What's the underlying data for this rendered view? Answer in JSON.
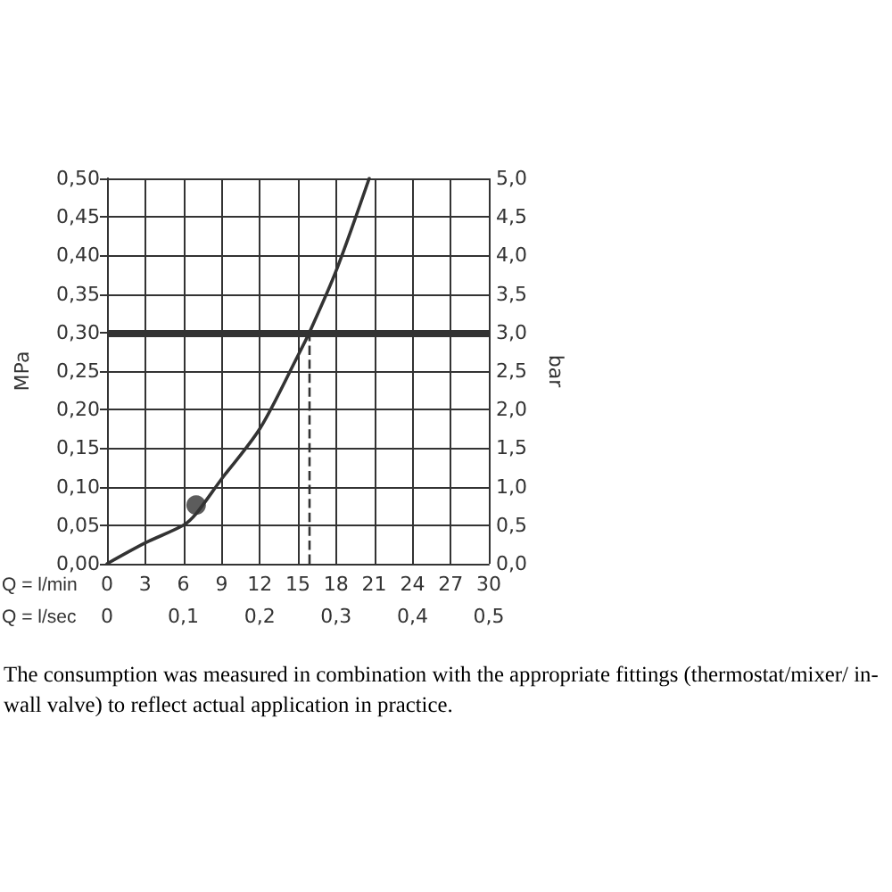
{
  "chart_data": {
    "type": "line",
    "xlabel": "Q = l/min",
    "x2label": "Q = l/sec",
    "ylabel": "MPa",
    "y2label": "bar",
    "x": [
      0,
      3,
      6,
      7,
      9,
      12,
      15,
      15.9,
      18,
      20.6
    ],
    "series": [
      {
        "color": "#333333",
        "values": [
          0,
          0.027,
          0.05,
          0.065,
          0.11,
          0.175,
          0.27,
          0.3,
          0.38,
          0.5
        ],
        "marker": "none",
        "line_style": "solid"
      },
      {
        "type": "scatter",
        "color": "#333333",
        "values": [
          null,
          null,
          null,
          0.076,
          null,
          null,
          null,
          null,
          null,
          null
        ],
        "marker": "circle"
      }
    ],
    "xlim": [
      0,
      30
    ],
    "xticks": [
      0,
      3,
      6,
      9,
      12,
      15,
      18,
      21,
      24,
      27,
      30
    ],
    "x2lim": [
      0,
      0.5
    ],
    "x2ticks": [
      0,
      {
        "value": 0.1,
        "label": "0,1"
      },
      {
        "value": 0.2,
        "label": "0,2"
      },
      {
        "value": 0.3,
        "label": "0,3"
      },
      {
        "value": 0.4,
        "label": "0,4"
      },
      {
        "value": 0.5,
        "label": "0,5"
      }
    ],
    "ylim": [
      0,
      0.5
    ],
    "yticks": [
      {
        "value": 0,
        "label": "0,00"
      },
      {
        "value": 0.05,
        "label": "0,05"
      },
      {
        "value": 0.1,
        "label": "0,10"
      },
      {
        "value": 0.15,
        "label": "0,15"
      },
      {
        "value": 0.2,
        "label": "0,20"
      },
      {
        "value": 0.25,
        "label": "0,25"
      },
      {
        "value": 0.3,
        "label": "0,30"
      },
      {
        "value": 0.35,
        "label": "0,35"
      },
      {
        "value": 0.4,
        "label": "0,40"
      },
      {
        "value": 0.45,
        "label": "0,45"
      },
      {
        "value": 0.5,
        "label": "0,50"
      }
    ],
    "y2lim": [
      0,
      5
    ],
    "y2ticks": [
      {
        "value": 0,
        "label": "0,0"
      },
      {
        "value": 0.5,
        "label": "0,5"
      },
      {
        "value": 1,
        "label": "1,0"
      },
      {
        "value": 1.5,
        "label": "1,5"
      },
      {
        "value": 2,
        "label": "2,0"
      },
      {
        "value": 2.5,
        "label": "2,5"
      },
      {
        "value": 3,
        "label": "3,0"
      },
      {
        "value": 3.5,
        "label": "3,5"
      },
      {
        "value": 4,
        "label": "4,0"
      },
      {
        "value": 4.5,
        "label": "4,5"
      },
      {
        "value": 5,
        "label": "5,0"
      }
    ],
    "ref_lines": [
      {
        "axis": "y",
        "value": 0.3,
        "color": "#333333",
        "line_style": "solid"
      },
      {
        "axis": "x",
        "value": 15.9,
        "color": "#333333",
        "line_style": "dashed"
      }
    ],
    "grid": true,
    "annotations": [
      "The consumption was measured in combination with the appropriate fittings (thermostat/mixer/ in-wall valve) to reflect actual application in practice."
    ]
  }
}
